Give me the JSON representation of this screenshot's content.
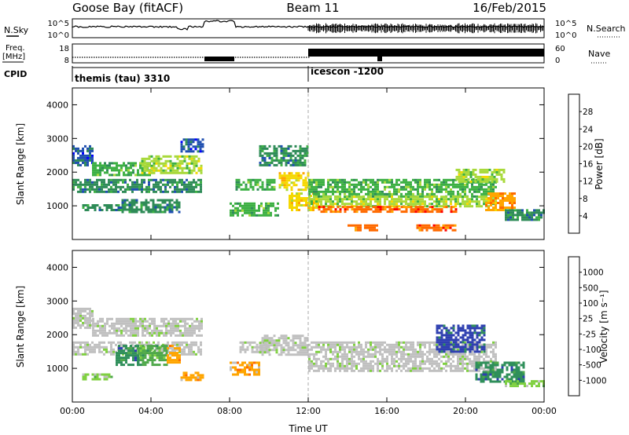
{
  "header": {
    "station": "Goose Bay (fitACF)",
    "beam": "Beam 11",
    "date": "16/Feb/2015"
  },
  "summary_panels": {
    "left_labels": {
      "nsky": "N.Sky",
      "freq_line1": "Freq.",
      "freq_line2": "[MHz]",
      "cpid": "CPID"
    },
    "right_labels": {
      "nsearch": "N.Search",
      "nave": "Nave"
    },
    "noise_ticks_left": [
      "10^5",
      "10^0"
    ],
    "noise_ticks_right": [
      "10^5",
      "10^0"
    ],
    "freq_ticks": [
      "18",
      "8"
    ],
    "nave_ticks": [
      "60",
      "0"
    ],
    "cpid_segments": [
      {
        "label": "themis (tau) 3310",
        "start_ut": 0
      },
      {
        "label": "icescon -1200",
        "start_ut": 12
      }
    ]
  },
  "chart_data": [
    {
      "type": "heatmap",
      "name": "power",
      "xlabel": "Time UT",
      "ylabel": "Slant Range [km]",
      "xlim": [
        0,
        24
      ],
      "ylim": [
        0,
        4500
      ],
      "x_ticks": [
        "00:00",
        "04:00",
        "08:00",
        "12:00",
        "16:00",
        "20:00",
        "00:00"
      ],
      "y_ticks": [
        "1000",
        "2000",
        "3000",
        "4000"
      ],
      "colorbar": {
        "label": "Power [dB]",
        "range": [
          0,
          32
        ],
        "ticks": [
          "4",
          "8",
          "12",
          "16",
          "20",
          "24",
          "28"
        ],
        "colors": [
          "#0000ff",
          "#1f4fb0",
          "#2e8b57",
          "#3cb043",
          "#a8d93a",
          "#f5d800",
          "#ffa500",
          "#ff6a00",
          "#ff0000"
        ]
      },
      "regions": [
        {
          "t": [
            0.0,
            6.6
          ],
          "r": [
            1400,
            1800
          ],
          "v": 10
        },
        {
          "t": [
            0.0,
            1.0
          ],
          "r": [
            2200,
            2800
          ],
          "v": 7
        },
        {
          "t": [
            1.0,
            4.0
          ],
          "r": [
            1900,
            2300
          ],
          "v": 13
        },
        {
          "t": [
            3.5,
            6.6
          ],
          "r": [
            2000,
            2500
          ],
          "v": 16
        },
        {
          "t": [
            2.5,
            5.5
          ],
          "r": [
            800,
            1200
          ],
          "v": 9
        },
        {
          "t": [
            0.5,
            2.5
          ],
          "r": [
            850,
            1050
          ],
          "v": 8
        },
        {
          "t": [
            5.5,
            6.6
          ],
          "r": [
            2600,
            3000
          ],
          "v": 6
        },
        {
          "t": [
            8.3,
            10.3
          ],
          "r": [
            1500,
            1800
          ],
          "v": 11
        },
        {
          "t": [
            8.0,
            10.5
          ],
          "r": [
            700,
            1100
          ],
          "v": 12
        },
        {
          "t": [
            9.5,
            12.0
          ],
          "r": [
            2200,
            2800
          ],
          "v": 9
        },
        {
          "t": [
            10.5,
            12.0
          ],
          "r": [
            1500,
            2000
          ],
          "v": 18
        },
        {
          "t": [
            11.0,
            12.5
          ],
          "r": [
            900,
            1400
          ],
          "v": 21
        },
        {
          "t": [
            12.0,
            21.5
          ],
          "r": [
            1300,
            1800
          ],
          "v": 12
        },
        {
          "t": [
            12.0,
            21.5
          ],
          "r": [
            1000,
            1300
          ],
          "v": 16
        },
        {
          "t": [
            12.5,
            19.5
          ],
          "r": [
            850,
            1000
          ],
          "v": 26
        },
        {
          "t": [
            14.0,
            15.5
          ],
          "r": [
            250,
            450
          ],
          "v": 27
        },
        {
          "t": [
            17.5,
            19.5
          ],
          "r": [
            250,
            450
          ],
          "v": 26
        },
        {
          "t": [
            19.5,
            22.0
          ],
          "r": [
            1700,
            2100
          ],
          "v": 17
        },
        {
          "t": [
            21.0,
            22.5
          ],
          "r": [
            900,
            1400
          ],
          "v": 22
        },
        {
          "t": [
            22.0,
            24.0
          ],
          "r": [
            600,
            900
          ],
          "v": 8
        }
      ]
    },
    {
      "type": "heatmap",
      "name": "velocity",
      "xlabel": "Time UT",
      "ylabel": "Slant Range [km]",
      "xlim": [
        0,
        24
      ],
      "ylim": [
        0,
        4500
      ],
      "x_ticks": [
        "00:00",
        "04:00",
        "08:00",
        "12:00",
        "16:00",
        "20:00",
        "00:00"
      ],
      "y_ticks": [
        "1000",
        "2000",
        "3000",
        "4000"
      ],
      "colorbar": {
        "label": "Velocity [m s⁻¹]",
        "ticks": [
          "1000",
          "500",
          "100",
          "25",
          "-25",
          "-100",
          "-500",
          "-1000"
        ],
        "colors": [
          "#2e3fb0",
          "#2f8f5a",
          "#4fa84a",
          "#7fd040",
          "#c0c0c0",
          "#c0c0c0",
          "#ffa500",
          "#ff6a00",
          "#ff0000"
        ]
      },
      "regions": [
        {
          "t": [
            0.0,
            6.6
          ],
          "r": [
            1400,
            1800
          ],
          "v": 4
        },
        {
          "t": [
            0.0,
            1.0
          ],
          "r": [
            2200,
            2800
          ],
          "v": 4
        },
        {
          "t": [
            1.0,
            6.6
          ],
          "r": [
            1950,
            2500
          ],
          "v": 4
        },
        {
          "t": [
            2.2,
            3.3
          ],
          "r": [
            1100,
            1700
          ],
          "v": 1
        },
        {
          "t": [
            3.3,
            4.8
          ],
          "r": [
            1100,
            1700
          ],
          "v": 2
        },
        {
          "t": [
            4.8,
            5.5
          ],
          "r": [
            1200,
            1700
          ],
          "v": 6
        },
        {
          "t": [
            0.5,
            2.0
          ],
          "r": [
            650,
            850
          ],
          "v": 3
        },
        {
          "t": [
            5.5,
            6.6
          ],
          "r": [
            650,
            900
          ],
          "v": 6
        },
        {
          "t": [
            8.0,
            9.5
          ],
          "r": [
            800,
            1200
          ],
          "v": 6
        },
        {
          "t": [
            8.5,
            10.0
          ],
          "r": [
            1500,
            1800
          ],
          "v": 4
        },
        {
          "t": [
            9.5,
            12.0
          ],
          "r": [
            1400,
            2000
          ],
          "v": 4
        },
        {
          "t": [
            12.0,
            21.5
          ],
          "r": [
            900,
            1800
          ],
          "v": 4
        },
        {
          "t": [
            18.5,
            21.0
          ],
          "r": [
            1500,
            2300
          ],
          "v": 0
        },
        {
          "t": [
            20.5,
            23.0
          ],
          "r": [
            600,
            1200
          ],
          "v": 1
        },
        {
          "t": [
            22.0,
            24.0
          ],
          "r": [
            450,
            650
          ],
          "v": 3
        }
      ]
    }
  ]
}
